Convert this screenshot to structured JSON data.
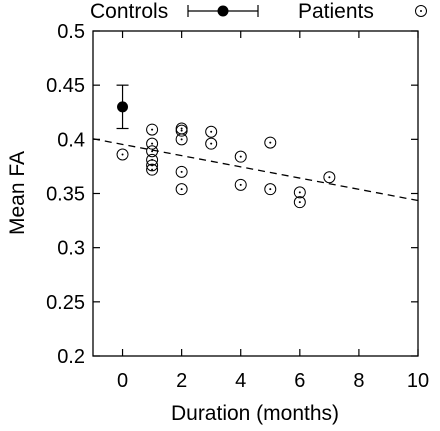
{
  "chart_data": {
    "type": "scatter",
    "xlabel": "Duration (months)",
    "ylabel": "Mean FA",
    "xlim": [
      -1,
      10
    ],
    "ylim": [
      0.2,
      0.5
    ],
    "xticks": [
      0,
      2,
      4,
      6,
      8,
      10
    ],
    "yticks": [
      0.2,
      0.25,
      0.3,
      0.35,
      0.4,
      0.45,
      0.5
    ],
    "ytick_labels": [
      "0.2",
      "0.25",
      "0.3",
      "0.35",
      "0.4",
      "0.45",
      "0.5"
    ],
    "legend_position": "top, outside plot",
    "series": [
      {
        "name": "Controls",
        "marker": "filled-circle-with-errorbar",
        "points": [
          {
            "x": 0,
            "y": 0.43,
            "err_low": 0.41,
            "err_high": 0.45
          }
        ]
      },
      {
        "name": "Patients",
        "marker": "dotted-circle",
        "points": [
          {
            "x": 0,
            "y": 0.386
          },
          {
            "x": 1,
            "y": 0.409
          },
          {
            "x": 1,
            "y": 0.396
          },
          {
            "x": 1,
            "y": 0.389
          },
          {
            "x": 1,
            "y": 0.381
          },
          {
            "x": 1,
            "y": 0.376
          },
          {
            "x": 1,
            "y": 0.372
          },
          {
            "x": 2,
            "y": 0.41
          },
          {
            "x": 2,
            "y": 0.408
          },
          {
            "x": 2,
            "y": 0.4
          },
          {
            "x": 2,
            "y": 0.37
          },
          {
            "x": 2,
            "y": 0.354
          },
          {
            "x": 3,
            "y": 0.407
          },
          {
            "x": 3,
            "y": 0.396
          },
          {
            "x": 4,
            "y": 0.384
          },
          {
            "x": 4,
            "y": 0.358
          },
          {
            "x": 5,
            "y": 0.397
          },
          {
            "x": 5,
            "y": 0.354
          },
          {
            "x": 6,
            "y": 0.351
          },
          {
            "x": 6,
            "y": 0.342
          },
          {
            "x": 7,
            "y": 0.365
          }
        ]
      }
    ],
    "trend_line": {
      "style": "dashed",
      "points": [
        {
          "x": -1,
          "y": 0.4005
        },
        {
          "x": 10,
          "y": 0.3435
        }
      ]
    },
    "colors": {
      "ink": "#000000",
      "background": "#ffffff"
    }
  }
}
